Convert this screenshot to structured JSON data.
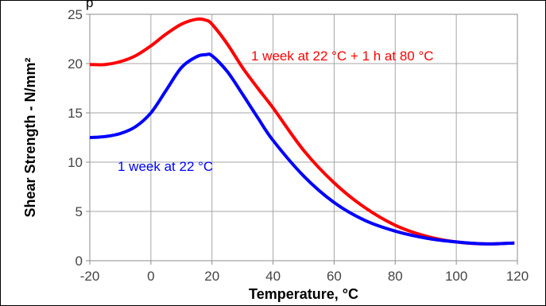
{
  "chart_data": {
    "type": "line",
    "title": "p",
    "xlabel": "Temperature, °C",
    "ylabel": "Shear Strength - N/mm²",
    "xlim": [
      -20,
      120
    ],
    "ylim": [
      0,
      25
    ],
    "x_ticks": [
      -20,
      0,
      20,
      40,
      60,
      80,
      100,
      120
    ],
    "y_ticks": [
      0,
      5,
      10,
      15,
      20,
      25
    ],
    "grid": true,
    "legend": "none",
    "series": [
      {
        "name": "1 week at 22 °C + 1 h at 80 °C",
        "color": "#ff0000",
        "x": [
          -20,
          -15,
          -10,
          -5,
          0,
          5,
          10,
          15,
          18,
          20,
          25,
          30,
          35,
          40,
          50,
          60,
          70,
          80,
          90,
          100,
          110,
          119
        ],
        "y": [
          19.9,
          19.9,
          20.2,
          20.8,
          21.8,
          23.0,
          24.0,
          24.5,
          24.4,
          24.0,
          22.0,
          19.6,
          17.5,
          15.5,
          11.2,
          7.9,
          5.4,
          3.6,
          2.5,
          1.9,
          1.7,
          1.8
        ]
      },
      {
        "name": "1 week at 22 °C",
        "color": "#0000ff",
        "x": [
          -20,
          -15,
          -10,
          -5,
          0,
          5,
          10,
          15,
          18,
          20,
          25,
          30,
          35,
          40,
          50,
          60,
          70,
          80,
          90,
          100,
          110,
          119
        ],
        "y": [
          12.5,
          12.6,
          12.9,
          13.6,
          15.0,
          17.3,
          19.6,
          20.7,
          20.9,
          20.8,
          19.2,
          16.9,
          14.5,
          12.2,
          8.6,
          5.9,
          4.1,
          3.0,
          2.3,
          1.9,
          1.7,
          1.8
        ]
      }
    ],
    "annotations": [
      {
        "text": "1 week at 22 °C + 1 h at 80 °C",
        "color": "#ff0000"
      },
      {
        "text": "1 week at 22 °C",
        "color": "#0000ff"
      }
    ]
  }
}
